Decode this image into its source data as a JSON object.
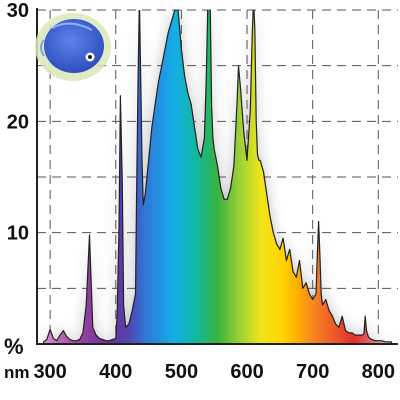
{
  "chart_data": {
    "type": "area",
    "title": "",
    "xlabel": "nm",
    "ylabel": "%",
    "xlim": [
      280,
      830
    ],
    "ylim": [
      0,
      30
    ],
    "grid": true,
    "x_ticks": [
      300,
      400,
      500,
      600,
      700,
      800
    ],
    "y_ticks": [
      10,
      20,
      30
    ],
    "x_unit_label": "nm",
    "y_unit_label": "%",
    "fill": "visible-spectrum gradient (violet to red)",
    "outline_color": "#222222",
    "series": [
      {
        "x": [
          290,
          295,
          300,
          305,
          310,
          315,
          320,
          325,
          330,
          335,
          340,
          345,
          350,
          355,
          360,
          362,
          365,
          370,
          375,
          380,
          385,
          390,
          395,
          400,
          402,
          405,
          407,
          410,
          412,
          415,
          420,
          425,
          430,
          432,
          434,
          436,
          438,
          440,
          442,
          445,
          450,
          455,
          460,
          465,
          470,
          475,
          480,
          485,
          490,
          495,
          500,
          505,
          510,
          515,
          520,
          525,
          530,
          535,
          538,
          540,
          542,
          544,
          546,
          548,
          550,
          555,
          560,
          565,
          570,
          575,
          580,
          585,
          587,
          590,
          595,
          600,
          605,
          608,
          610,
          612,
          614,
          616,
          618,
          620,
          625,
          630,
          635,
          640,
          645,
          650,
          655,
          660,
          665,
          670,
          675,
          680,
          685,
          690,
          695,
          700,
          705,
          707,
          709,
          711,
          713,
          715,
          720,
          725,
          730,
          735,
          740,
          745,
          750,
          755,
          760,
          765,
          770,
          775,
          778,
          780,
          782,
          785,
          790,
          795,
          800,
          805,
          810,
          815,
          820
        ],
        "y": [
          0.2,
          0.4,
          1.3,
          0.5,
          0.3,
          0.8,
          1.2,
          0.7,
          0.4,
          0.3,
          0.3,
          0.4,
          1.0,
          3.5,
          9.8,
          6.5,
          1.5,
          0.8,
          0.5,
          0.4,
          0.3,
          0.3,
          0.4,
          0.5,
          2.5,
          10.5,
          22.3,
          14.5,
          3.5,
          1.5,
          1.8,
          3.0,
          4.5,
          15.0,
          24.0,
          31.0,
          24.0,
          16.5,
          12.5,
          13.5,
          16.5,
          19.5,
          21.5,
          23.5,
          25.0,
          26.5,
          28.0,
          29.0,
          30.0,
          30.0,
          26.5,
          24.0,
          22.5,
          21.5,
          19.5,
          17.5,
          16.8,
          18.5,
          24.0,
          30.0,
          31.0,
          30.0,
          21.5,
          18.5,
          17.5,
          16.0,
          14.0,
          13.0,
          13.0,
          14.0,
          16.0,
          22.0,
          25.0,
          23.0,
          19.0,
          16.5,
          21.0,
          28.0,
          31.0,
          28.0,
          20.0,
          17.0,
          16.5,
          16.5,
          15.5,
          13.5,
          11.5,
          10.0,
          9.0,
          8.5,
          9.5,
          7.5,
          8.5,
          6.5,
          6.0,
          7.5,
          5.0,
          5.5,
          4.5,
          4.0,
          4.5,
          8.0,
          11.0,
          8.0,
          4.5,
          3.5,
          4.0,
          3.0,
          2.5,
          1.8,
          1.5,
          2.5,
          1.2,
          1.0,
          1.0,
          0.8,
          0.8,
          0.8,
          0.9,
          2.5,
          1.2,
          0.6,
          0.4,
          0.3,
          0.3,
          0.3,
          0.2,
          0.2,
          0.2
        ]
      }
    ]
  },
  "ui": {
    "colors": {
      "background": "#ffffff",
      "grid": "#555555",
      "axis": "#222222",
      "text": "#111111",
      "badge_outer": "#dfecc0",
      "badge_fish": "#3f63d6"
    },
    "icons": [
      "discus-fish-badge-icon"
    ]
  }
}
